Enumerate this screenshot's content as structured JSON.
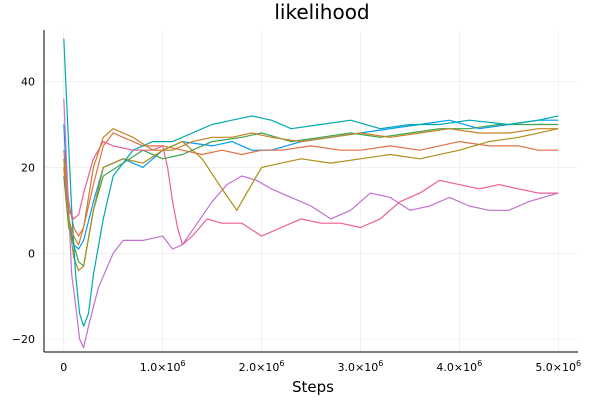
{
  "chart_data": {
    "type": "line",
    "title": "likelihood",
    "xlabel": "Steps",
    "ylabel": "",
    "xlim": [
      -200000,
      5200000
    ],
    "ylim": [
      -23,
      52
    ],
    "grid": true,
    "legend": "none",
    "x_ticks": [
      {
        "value": 0,
        "mant": "0",
        "exp": ""
      },
      {
        "value": 1000000,
        "mant": "1.0×10",
        "exp": "6"
      },
      {
        "value": 2000000,
        "mant": "2.0×10",
        "exp": "6"
      },
      {
        "value": 3000000,
        "mant": "3.0×10",
        "exp": "6"
      },
      {
        "value": 4000000,
        "mant": "4.0×10",
        "exp": "6"
      },
      {
        "value": 5000000,
        "mant": "5.0×10",
        "exp": "6"
      }
    ],
    "y_ticks": [
      {
        "value": -20,
        "label": "−20"
      },
      {
        "value": 0,
        "label": "0"
      },
      {
        "value": 20,
        "label": "20"
      },
      {
        "value": 40,
        "label": "40"
      }
    ],
    "series": [
      {
        "color": "#009af9",
        "points": [
          [
            0,
            30
          ],
          [
            50000,
            8
          ],
          [
            100000,
            2
          ],
          [
            150000,
            1
          ],
          [
            200000,
            3
          ],
          [
            300000,
            12
          ],
          [
            400000,
            20
          ],
          [
            600000,
            22
          ],
          [
            800000,
            20
          ],
          [
            1000000,
            24
          ],
          [
            1200000,
            26
          ],
          [
            1500000,
            25
          ],
          [
            1700000,
            26
          ],
          [
            1900000,
            24
          ],
          [
            2100000,
            24
          ],
          [
            2400000,
            26
          ],
          [
            2700000,
            27
          ],
          [
            3000000,
            28
          ],
          [
            3300000,
            29
          ],
          [
            3600000,
            30
          ],
          [
            3900000,
            31
          ],
          [
            4200000,
            29
          ],
          [
            4500000,
            30
          ],
          [
            4800000,
            31
          ],
          [
            5000000,
            31
          ]
        ]
      },
      {
        "color": "#e26f46",
        "points": [
          [
            0,
            24
          ],
          [
            50000,
            12
          ],
          [
            100000,
            6
          ],
          [
            150000,
            4
          ],
          [
            200000,
            6
          ],
          [
            300000,
            16
          ],
          [
            400000,
            25
          ],
          [
            500000,
            28
          ],
          [
            600000,
            27
          ],
          [
            800000,
            25
          ],
          [
            1000000,
            25
          ],
          [
            1200000,
            24
          ],
          [
            1400000,
            23
          ],
          [
            1600000,
            24
          ],
          [
            1800000,
            23
          ],
          [
            2000000,
            24
          ],
          [
            2200000,
            24
          ],
          [
            2500000,
            25
          ],
          [
            2800000,
            24
          ],
          [
            3000000,
            24
          ],
          [
            3300000,
            25
          ],
          [
            3600000,
            24
          ],
          [
            4000000,
            26
          ],
          [
            4300000,
            25
          ],
          [
            4600000,
            25
          ],
          [
            4800000,
            24
          ],
          [
            5000000,
            24
          ]
        ]
      },
      {
        "color": "#3da44d",
        "points": [
          [
            0,
            18
          ],
          [
            50000,
            6
          ],
          [
            100000,
            2
          ],
          [
            150000,
            -2
          ],
          [
            200000,
            -3
          ],
          [
            300000,
            10
          ],
          [
            400000,
            18
          ],
          [
            600000,
            21
          ],
          [
            800000,
            24
          ],
          [
            1000000,
            22
          ],
          [
            1200000,
            23
          ],
          [
            1500000,
            26
          ],
          [
            1800000,
            27
          ],
          [
            2000000,
            28
          ],
          [
            2300000,
            26
          ],
          [
            2600000,
            27
          ],
          [
            2900000,
            28
          ],
          [
            3200000,
            27
          ],
          [
            3500000,
            28
          ],
          [
            3800000,
            29
          ],
          [
            4100000,
            29
          ],
          [
            4400000,
            30
          ],
          [
            4700000,
            30
          ],
          [
            5000000,
            30
          ]
        ]
      },
      {
        "color": "#c271d2",
        "points": [
          [
            0,
            36
          ],
          [
            40000,
            15
          ],
          [
            80000,
            -5
          ],
          [
            120000,
            -12
          ],
          [
            160000,
            -20
          ],
          [
            200000,
            -22
          ],
          [
            250000,
            -17
          ],
          [
            350000,
            -8
          ],
          [
            500000,
            0
          ],
          [
            600000,
            3
          ],
          [
            800000,
            3
          ],
          [
            1000000,
            4
          ],
          [
            1100000,
            1
          ],
          [
            1200000,
            2
          ],
          [
            1350000,
            7
          ],
          [
            1500000,
            12
          ],
          [
            1650000,
            16
          ],
          [
            1800000,
            18
          ],
          [
            1950000,
            17
          ],
          [
            2100000,
            15
          ],
          [
            2300000,
            13
          ],
          [
            2500000,
            11
          ],
          [
            2700000,
            8
          ],
          [
            2900000,
            10
          ],
          [
            3100000,
            14
          ],
          [
            3300000,
            13
          ],
          [
            3500000,
            10
          ],
          [
            3700000,
            11
          ],
          [
            3900000,
            13
          ],
          [
            4100000,
            11
          ],
          [
            4300000,
            10
          ],
          [
            4500000,
            10
          ],
          [
            4700000,
            12
          ],
          [
            5000000,
            14
          ]
        ]
      },
      {
        "color": "#ac8e18",
        "points": [
          [
            0,
            22
          ],
          [
            50000,
            8
          ],
          [
            100000,
            -1
          ],
          [
            150000,
            -4
          ],
          [
            200000,
            -3
          ],
          [
            300000,
            10
          ],
          [
            400000,
            20
          ],
          [
            600000,
            22
          ],
          [
            800000,
            21
          ],
          [
            1000000,
            24
          ],
          [
            1200000,
            26
          ],
          [
            1400000,
            22
          ],
          [
            1600000,
            15
          ],
          [
            1750000,
            10
          ],
          [
            1850000,
            14
          ],
          [
            2000000,
            20
          ],
          [
            2200000,
            21
          ],
          [
            2400000,
            22
          ],
          [
            2700000,
            21
          ],
          [
            3000000,
            22
          ],
          [
            3300000,
            23
          ],
          [
            3600000,
            22
          ],
          [
            4000000,
            24
          ],
          [
            4300000,
            26
          ],
          [
            4600000,
            27
          ],
          [
            5000000,
            29
          ]
        ]
      },
      {
        "color": "#00a9ad",
        "points": [
          [
            0,
            50
          ],
          [
            40000,
            30
          ],
          [
            80000,
            10
          ],
          [
            120000,
            -5
          ],
          [
            160000,
            -14
          ],
          [
            200000,
            -17
          ],
          [
            250000,
            -14
          ],
          [
            300000,
            -5
          ],
          [
            400000,
            8
          ],
          [
            500000,
            18
          ],
          [
            700000,
            24
          ],
          [
            900000,
            26
          ],
          [
            1100000,
            26
          ],
          [
            1300000,
            28
          ],
          [
            1500000,
            30
          ],
          [
            1700000,
            31
          ],
          [
            1900000,
            32
          ],
          [
            2100000,
            31
          ],
          [
            2300000,
            29
          ],
          [
            2600000,
            30
          ],
          [
            2900000,
            31
          ],
          [
            3200000,
            29
          ],
          [
            3500000,
            30
          ],
          [
            3800000,
            30
          ],
          [
            4100000,
            31
          ],
          [
            4500000,
            30
          ],
          [
            4800000,
            31
          ],
          [
            5000000,
            32
          ]
        ]
      },
      {
        "color": "#ed5e93",
        "points": [
          [
            0,
            20
          ],
          [
            50000,
            10
          ],
          [
            100000,
            8
          ],
          [
            150000,
            9
          ],
          [
            200000,
            14
          ],
          [
            300000,
            22
          ],
          [
            400000,
            26
          ],
          [
            500000,
            25
          ],
          [
            700000,
            24
          ],
          [
            900000,
            24
          ],
          [
            1000000,
            25
          ],
          [
            1050000,
            20
          ],
          [
            1100000,
            12
          ],
          [
            1150000,
            6
          ],
          [
            1200000,
            2
          ],
          [
            1300000,
            4
          ],
          [
            1450000,
            8
          ],
          [
            1600000,
            7
          ],
          [
            1800000,
            7
          ],
          [
            2000000,
            4
          ],
          [
            2200000,
            6
          ],
          [
            2400000,
            8
          ],
          [
            2600000,
            7
          ],
          [
            2800000,
            7
          ],
          [
            3000000,
            6
          ],
          [
            3200000,
            8
          ],
          [
            3400000,
            12
          ],
          [
            3600000,
            14
          ],
          [
            3800000,
            17
          ],
          [
            4000000,
            16
          ],
          [
            4200000,
            15
          ],
          [
            4400000,
            16
          ],
          [
            4600000,
            15
          ],
          [
            4800000,
            14
          ],
          [
            5000000,
            14
          ]
        ]
      },
      {
        "color": "#c68225",
        "points": [
          [
            0,
            20
          ],
          [
            50000,
            8
          ],
          [
            100000,
            4
          ],
          [
            150000,
            2
          ],
          [
            200000,
            6
          ],
          [
            300000,
            20
          ],
          [
            400000,
            27
          ],
          [
            500000,
            29
          ],
          [
            700000,
            27
          ],
          [
            900000,
            24
          ],
          [
            1100000,
            24
          ],
          [
            1300000,
            26
          ],
          [
            1500000,
            27
          ],
          [
            1700000,
            27
          ],
          [
            1900000,
            28
          ],
          [
            2100000,
            27
          ],
          [
            2400000,
            26
          ],
          [
            2700000,
            27
          ],
          [
            3000000,
            28
          ],
          [
            3300000,
            27
          ],
          [
            3600000,
            28
          ],
          [
            3900000,
            29
          ],
          [
            4200000,
            28
          ],
          [
            4500000,
            28
          ],
          [
            4800000,
            29
          ],
          [
            5000000,
            29
          ]
        ]
      }
    ]
  }
}
